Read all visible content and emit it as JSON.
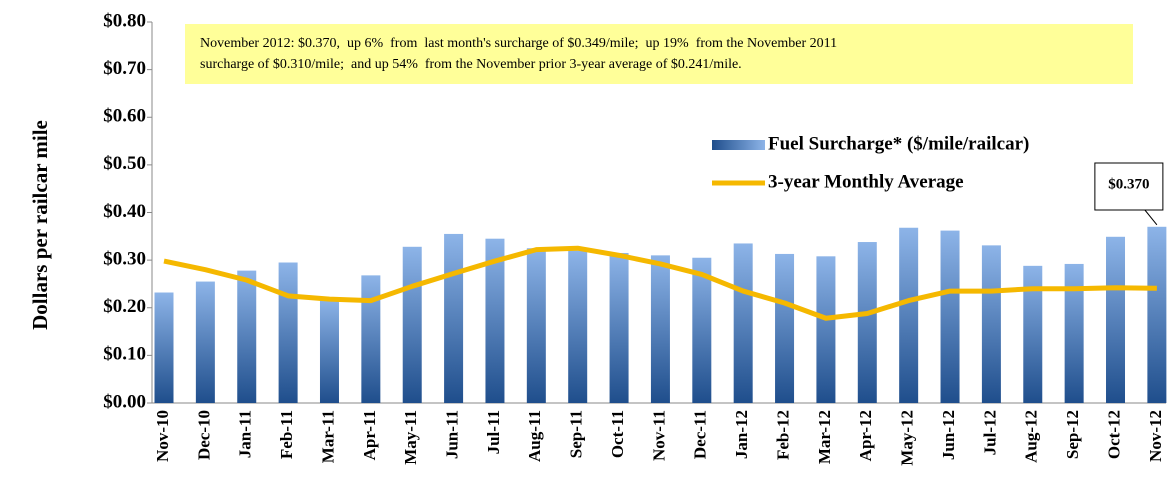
{
  "chart_data": {
    "type": "bar-line",
    "y_label": "Dollars per railcar mile",
    "annotation": [
      "November 2012: $0.370,  up 6%  from  last month's surcharge of $0.349/mile;  up 19%  from the November 2011",
      "surcharge of $0.310/mile;  and up 54%  from the November prior 3-year average of $0.241/mile."
    ],
    "categories": [
      "Nov-10",
      "Dec-10",
      "Jan-11",
      "Feb-11",
      "Mar-11",
      "Apr-11",
      "May-11",
      "Jun-11",
      "Jul-11",
      "Aug-11",
      "Sep-11",
      "Oct-11",
      "Nov-11",
      "Dec-11",
      "Jan-12",
      "Feb-12",
      "Mar-12",
      "Apr-12",
      "May-12",
      "Jun-12",
      "Jul-12",
      "Aug-12",
      "Sep-12",
      "Oct-12",
      "Nov-12"
    ],
    "series": [
      {
        "name": "Fuel Surcharge* ($/mile/railcar)",
        "type": "bar",
        "color": "#8db4e8",
        "values": [
          0.232,
          0.255,
          0.278,
          0.295,
          0.218,
          0.268,
          0.328,
          0.355,
          0.345,
          0.325,
          0.32,
          0.315,
          0.31,
          0.305,
          0.335,
          0.313,
          0.308,
          0.338,
          0.368,
          0.362,
          0.331,
          0.288,
          0.292,
          0.349,
          0.37
        ],
        "value_labels": [
          null,
          null,
          null,
          null,
          null,
          null,
          null,
          null,
          null,
          null,
          null,
          null,
          null,
          null,
          null,
          null,
          null,
          null,
          null,
          null,
          null,
          null,
          null,
          null,
          "$0.370"
        ]
      },
      {
        "name": "3-year Monthly Average",
        "type": "line",
        "color": "#f5b800",
        "values": [
          0.298,
          0.28,
          0.258,
          0.225,
          0.218,
          0.215,
          0.245,
          0.272,
          0.298,
          0.322,
          0.325,
          0.31,
          0.292,
          0.27,
          0.235,
          0.21,
          0.178,
          0.188,
          0.215,
          0.235,
          0.235,
          0.24,
          0.24,
          0.242,
          0.241
        ]
      }
    ],
    "ylim": [
      0,
      0.8
    ],
    "yticks": [
      {
        "value": 0,
        "label": "$0.00"
      },
      {
        "value": 0.1,
        "label": "$0.10"
      },
      {
        "value": 0.2,
        "label": "$0.20"
      },
      {
        "value": 0.3,
        "label": "$0.30"
      },
      {
        "value": 0.4,
        "label": "$0.40"
      },
      {
        "value": 0.5,
        "label": "$0.50"
      },
      {
        "value": 0.6,
        "label": "$0.60"
      },
      {
        "value": 0.7,
        "label": "$0.70"
      },
      {
        "value": 0.8,
        "label": "$0.80"
      }
    ],
    "grid": false
  }
}
